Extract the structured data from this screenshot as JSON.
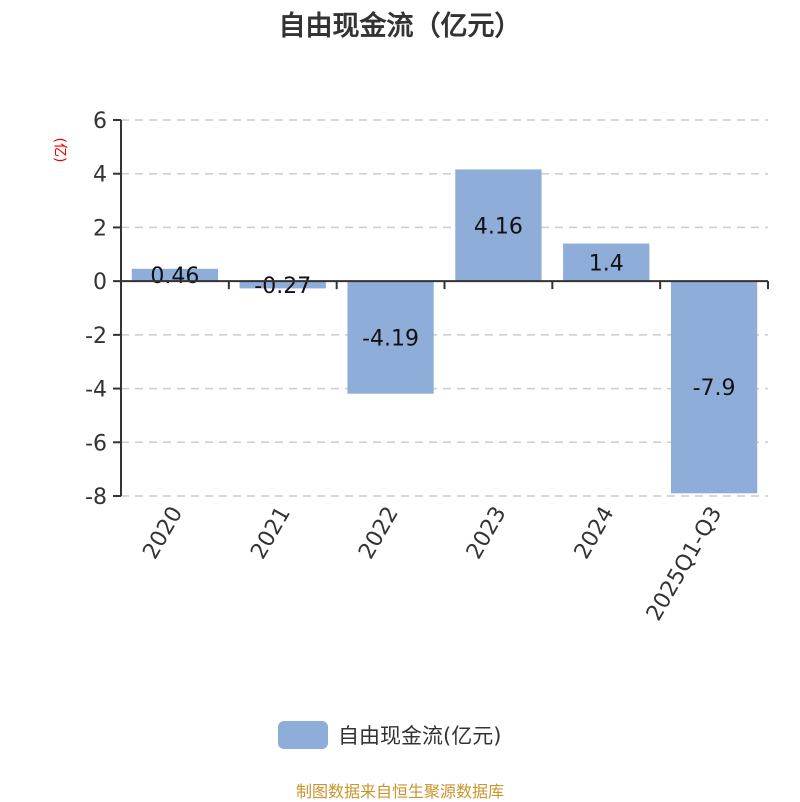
{
  "chart_data": {
    "type": "bar",
    "title": "自由现金流（亿元）",
    "ylabel": "(亿)",
    "categories": [
      "2020",
      "2021",
      "2022",
      "2023",
      "2024",
      "2025Q1-Q3"
    ],
    "series": [
      {
        "name": "自由现金流(亿元)",
        "values": [
          0.46,
          -0.27,
          -4.19,
          4.16,
          1.4,
          -7.9
        ],
        "data_labels": [
          "0.46",
          "-0.27",
          "-4.19",
          "4.16",
          "1.4",
          "-7.9"
        ],
        "color": "#8eadd9"
      }
    ],
    "ylim": [
      -8,
      6
    ],
    "yticks": [
      "6",
      "4",
      "2",
      "0",
      "-2",
      "-4",
      "-6",
      "-8"
    ],
    "grid": true,
    "legend": "bottom"
  },
  "source": "制图数据来自恒生聚源数据库"
}
